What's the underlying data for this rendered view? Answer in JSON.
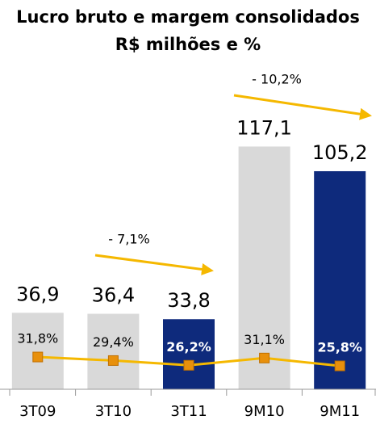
{
  "chart_data": {
    "type": "bar",
    "title": "Lucro bruto e margem consolidados",
    "subtitle": "R$ milhões e %",
    "categories": [
      "3T09",
      "3T10",
      "3T11",
      "9M10",
      "9M11"
    ],
    "series": [
      {
        "values": [
          36.9,
          36.4,
          33.8,
          117.1,
          105.2
        ],
        "value_labels": [
          "36,9",
          "36,4",
          "33,8",
          "117,1",
          "105,2"
        ],
        "colors": [
          "#d9d9d9",
          "#d9d9d9",
          "#0e2a7c",
          "#d9d9d9",
          "#0e2a7c"
        ]
      },
      {
        "type": "line",
        "axis": "y2",
        "values": [
          31.8,
          29.4,
          26.2,
          31.1,
          25.8
        ],
        "value_labels": [
          "31,8%",
          "29,4%",
          "26,2%",
          "31,1%",
          "25,8%"
        ],
        "color": "#f5b800",
        "marker_color": "#e8900c"
      }
    ],
    "ylim": [
      0,
      120
    ],
    "y2lim": [
      10,
      178
    ],
    "annotations": [
      "- 7,1%",
      "- 10,2%"
    ]
  }
}
